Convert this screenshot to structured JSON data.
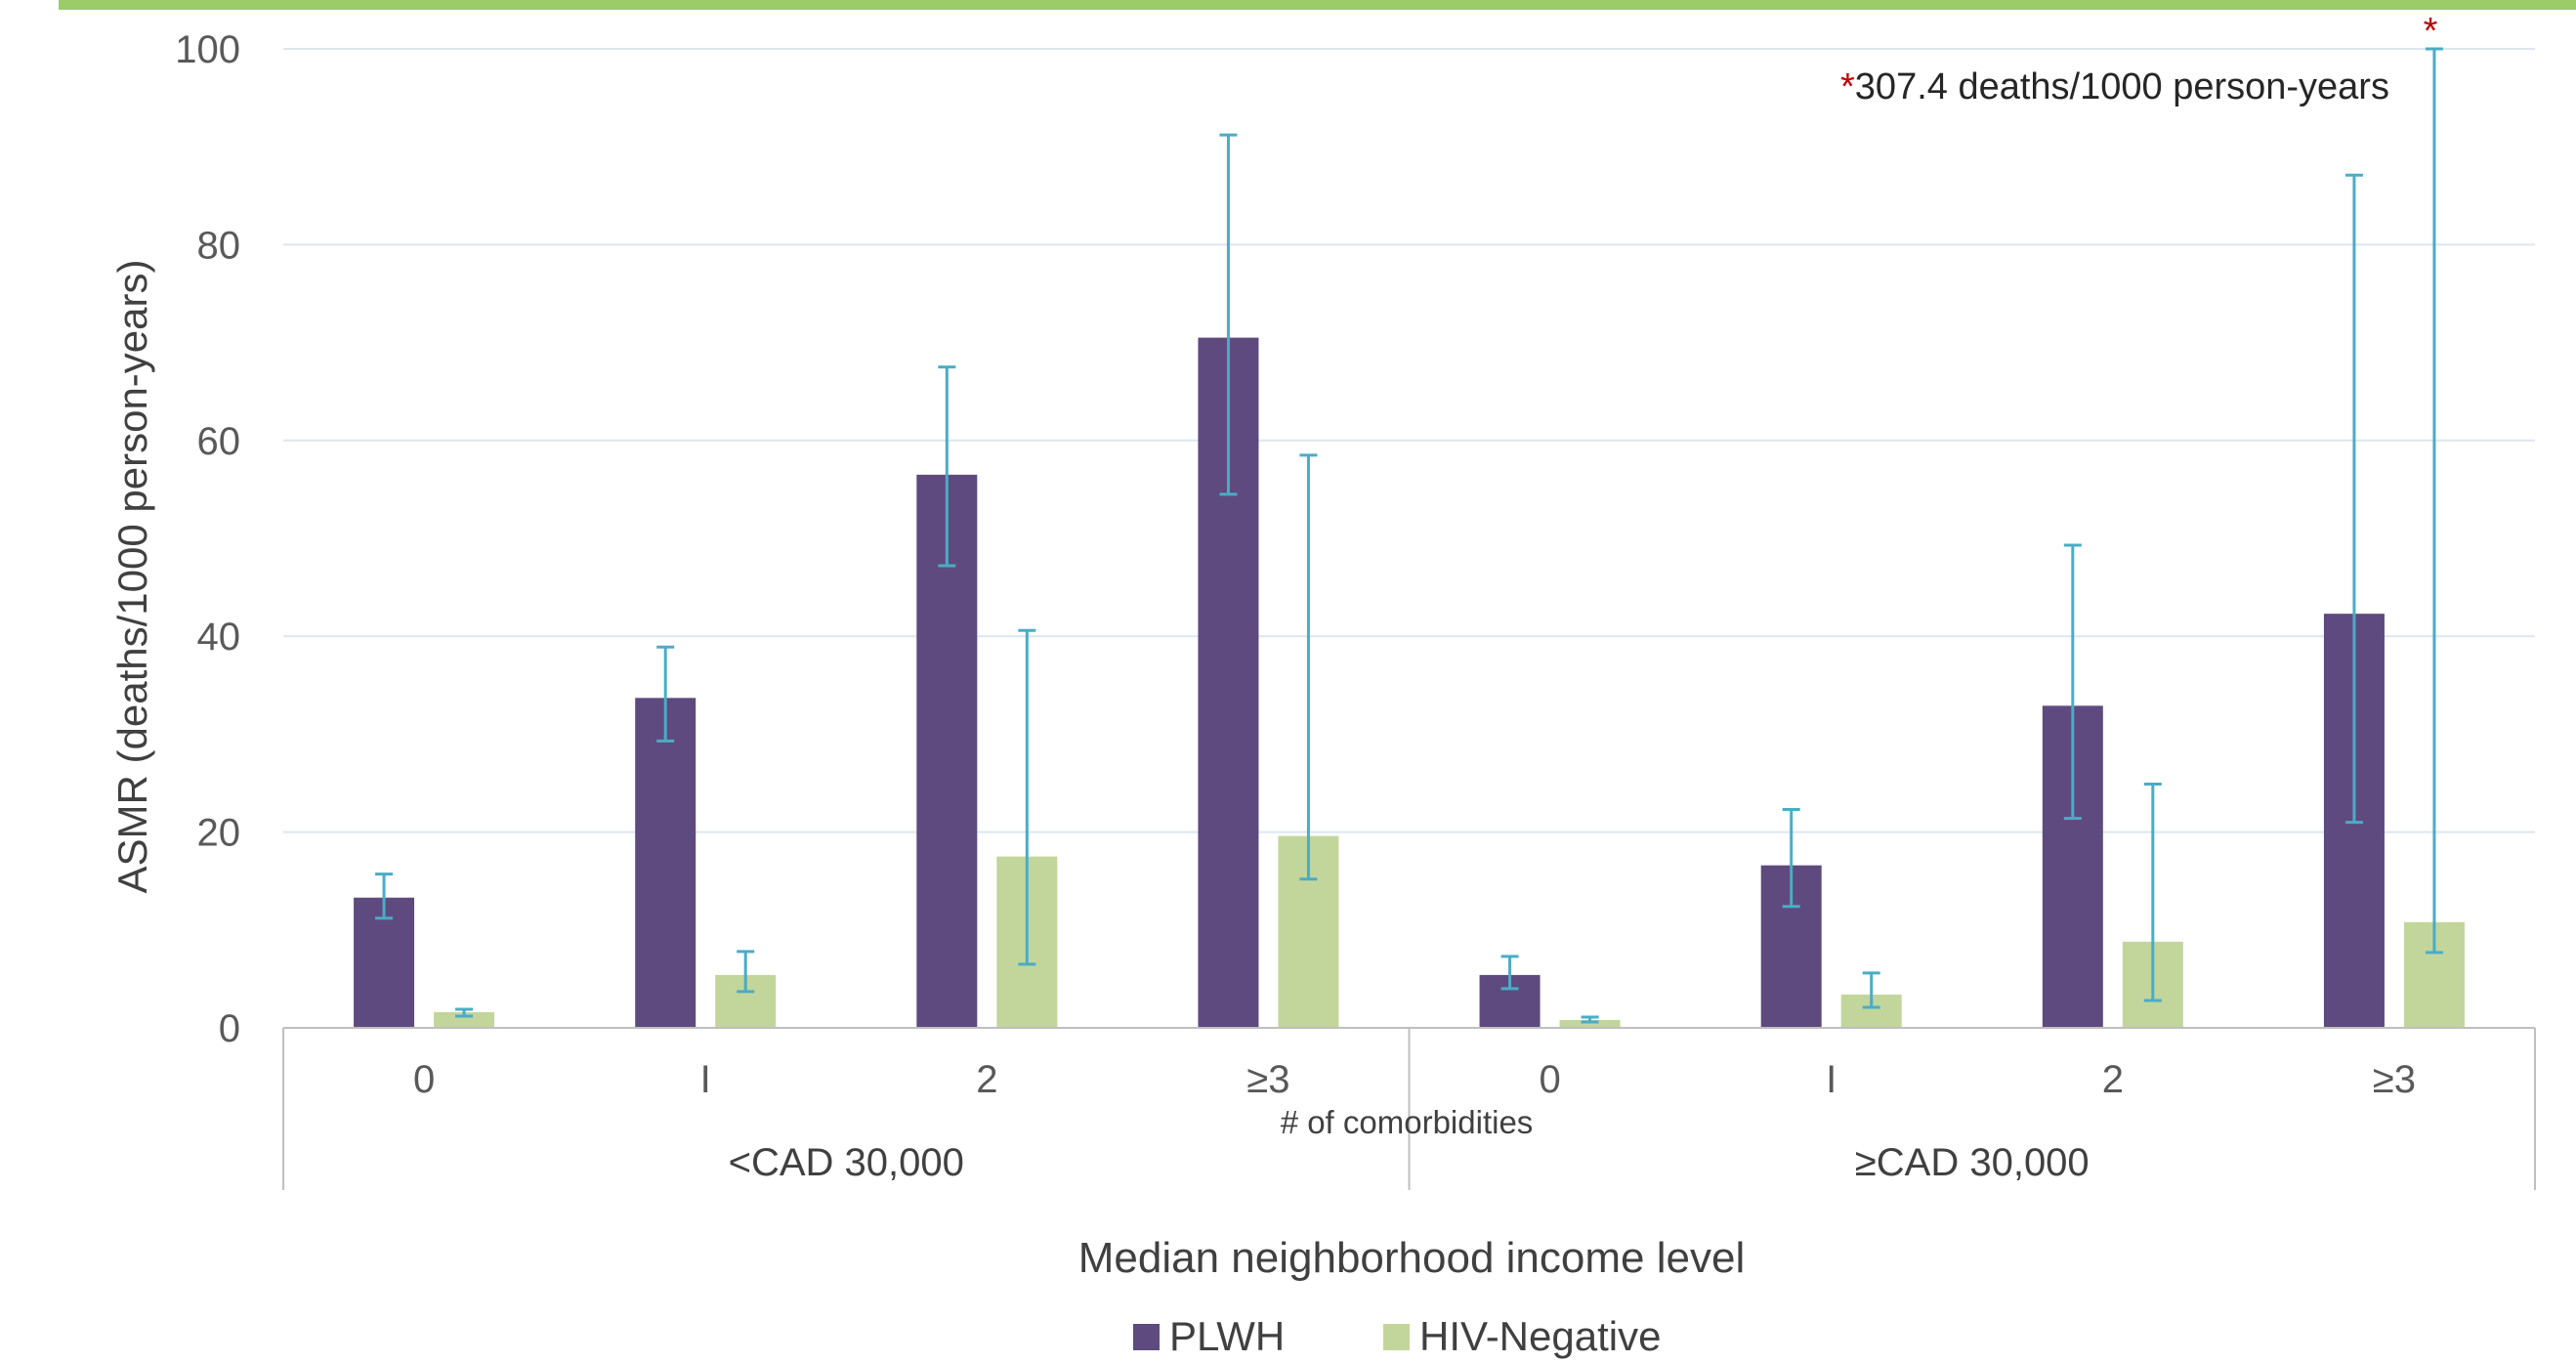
{
  "chart_data": {
    "type": "bar",
    "title": "",
    "ylabel": "ASMR (deaths/1000 person-years)",
    "xlabel": "Median neighborhood income level",
    "x_sublabel": "# of comorbidities",
    "ylim": [
      0,
      100
    ],
    "yticks": [
      "0",
      "20",
      "40",
      "60",
      "80",
      "100"
    ],
    "grid": true,
    "legend_position": "bottom",
    "groups": [
      {
        "label": "<CAD 30,000",
        "categories": [
          "0",
          "I",
          "2",
          "≥3"
        ]
      },
      {
        "label": "≥CAD 30,000",
        "categories": [
          "0",
          "I",
          "2",
          "≥3"
        ]
      }
    ],
    "series": [
      {
        "name": "PLWH",
        "color": "#5e4a7e",
        "values": [
          13.3,
          33.7,
          56.5,
          70.5,
          5.4,
          16.6,
          32.9,
          42.3
        ],
        "err_low": [
          11.2,
          29.3,
          47.2,
          54.5,
          4.0,
          12.4,
          21.4,
          21.0
        ],
        "err_high": [
          15.7,
          38.9,
          67.5,
          91.2,
          7.3,
          22.3,
          49.3,
          87.1
        ]
      },
      {
        "name": "HIV-Negative",
        "color": "#c2d69b",
        "values": [
          1.6,
          5.4,
          17.5,
          19.6,
          0.8,
          3.4,
          8.8,
          10.8
        ],
        "err_low": [
          1.2,
          3.7,
          6.5,
          15.2,
          0.6,
          2.1,
          2.8,
          7.7
        ],
        "err_high": [
          1.9,
          7.8,
          40.6,
          58.5,
          1.1,
          5.6,
          24.9,
          100
        ]
      }
    ],
    "error_bar_color": "#4bacc6",
    "annotation": {
      "marker": "*",
      "text": "307.4 deaths/1000 person-years",
      "color": "#c00000"
    }
  }
}
